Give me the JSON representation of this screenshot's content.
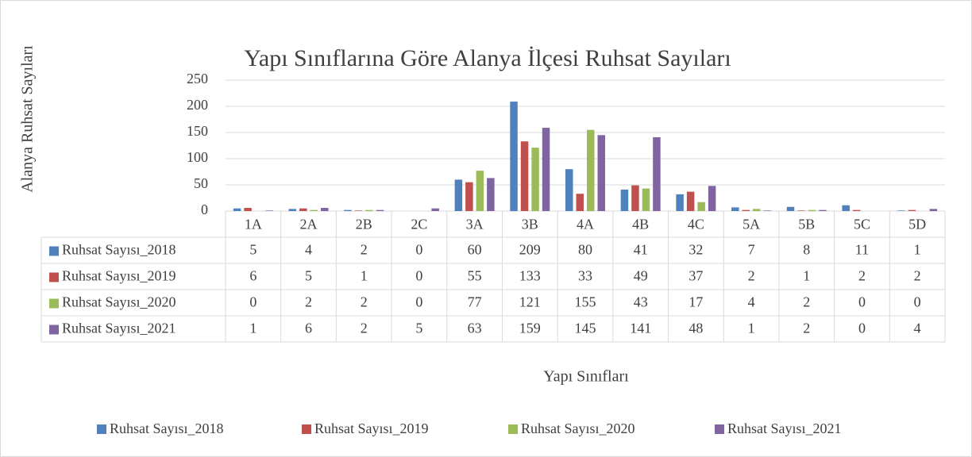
{
  "chart_data": {
    "type": "bar",
    "title": "Yapı Sınıflarına Göre Alanya İlçesi Ruhsat Sayıları",
    "x_label": "Yapı Sınıfları",
    "y_label": "Alanya Ruhsat Sayıları",
    "categories": [
      "1A",
      "2A",
      "2B",
      "2C",
      "3A",
      "3B",
      "4A",
      "4B",
      "4C",
      "5A",
      "5B",
      "5C",
      "5D"
    ],
    "series": [
      {
        "name": "Ruhsat Sayısı_2018",
        "color": "#4f81bd",
        "values": [
          5,
          4,
          2,
          0,
          60,
          209,
          80,
          41,
          32,
          7,
          8,
          11,
          1
        ]
      },
      {
        "name": "Ruhsat Sayısı_2019",
        "color": "#c0504d",
        "values": [
          6,
          5,
          1,
          0,
          55,
          133,
          33,
          49,
          37,
          2,
          1,
          2,
          2
        ]
      },
      {
        "name": "Ruhsat Sayısı_2020",
        "color": "#9bbb59",
        "values": [
          0,
          2,
          2,
          0,
          77,
          121,
          155,
          43,
          17,
          4,
          2,
          0,
          0
        ]
      },
      {
        "name": "Ruhsat Sayısı_2021",
        "color": "#8064a2",
        "values": [
          1,
          6,
          2,
          5,
          63,
          159,
          145,
          141,
          48,
          1,
          2,
          0,
          4
        ]
      }
    ],
    "ylim": [
      0,
      250
    ],
    "yticks": [
      0,
      50,
      100,
      150,
      200,
      250
    ],
    "grid": true,
    "legend": "bottom",
    "data_table": true
  }
}
